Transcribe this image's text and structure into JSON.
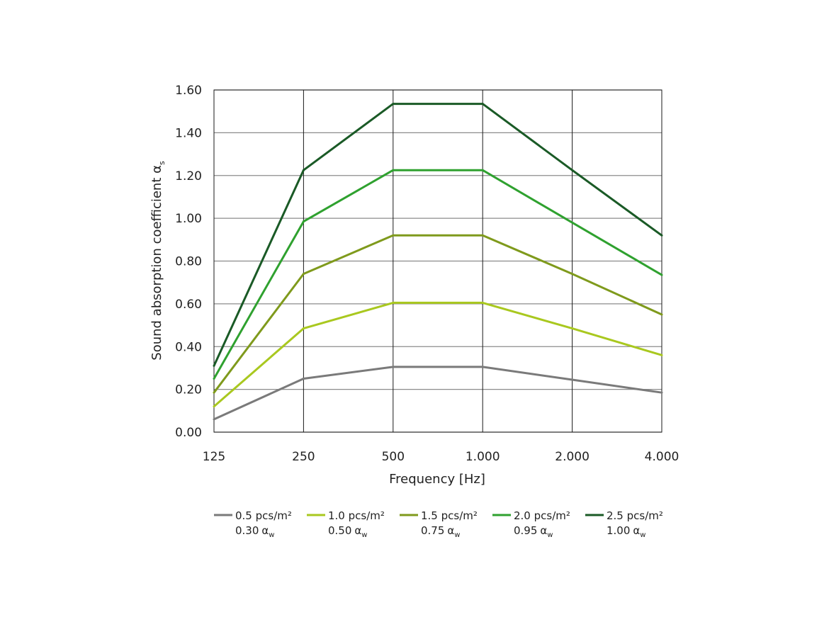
{
  "chart_data": {
    "type": "line",
    "xlabel": "Frequency [Hz]",
    "ylabel_main": "Sound absorption coefficient α",
    "ylabel_sub": "s",
    "categories": [
      "125",
      "250",
      "500",
      "1.000",
      "2.000",
      "4.000"
    ],
    "y_ticks": [
      "0.00",
      "0.20",
      "0.40",
      "0.60",
      "0.80",
      "1.00",
      "1.20",
      "1.40",
      "1.60"
    ],
    "ylim": [
      0,
      1.6
    ],
    "grid": true,
    "legend_position": "bottom",
    "series": [
      {
        "name": "0.5 pcs/m²",
        "rating": "0.30",
        "rating_symbol": "α",
        "rating_sub": "w",
        "color": "#7a7a7a",
        "values": [
          0.06,
          0.25,
          0.305,
          0.305,
          0.245,
          0.185
        ]
      },
      {
        "name": "1.0 pcs/m²",
        "rating": "0.50",
        "rating_symbol": "α",
        "rating_sub": "w",
        "color": "#a9c81f",
        "values": [
          0.12,
          0.485,
          0.605,
          0.605,
          0.485,
          0.36
        ]
      },
      {
        "name": "1.5 pcs/m²",
        "rating": "0.75",
        "rating_symbol": "α",
        "rating_sub": "w",
        "color": "#7f9a1c",
        "values": [
          0.185,
          0.74,
          0.92,
          0.92,
          0.74,
          0.55
        ]
      },
      {
        "name": "2.0 pcs/m²",
        "rating": "0.95",
        "rating_symbol": "α",
        "rating_sub": "w",
        "color": "#2fa12f",
        "values": [
          0.25,
          0.985,
          1.225,
          1.225,
          0.98,
          0.735
        ]
      },
      {
        "name": "2.5 pcs/m²",
        "rating": "1.00",
        "rating_symbol": "α",
        "rating_sub": "w",
        "color": "#1a5a26",
        "values": [
          0.31,
          1.225,
          1.535,
          1.535,
          1.225,
          0.92
        ]
      }
    ]
  }
}
